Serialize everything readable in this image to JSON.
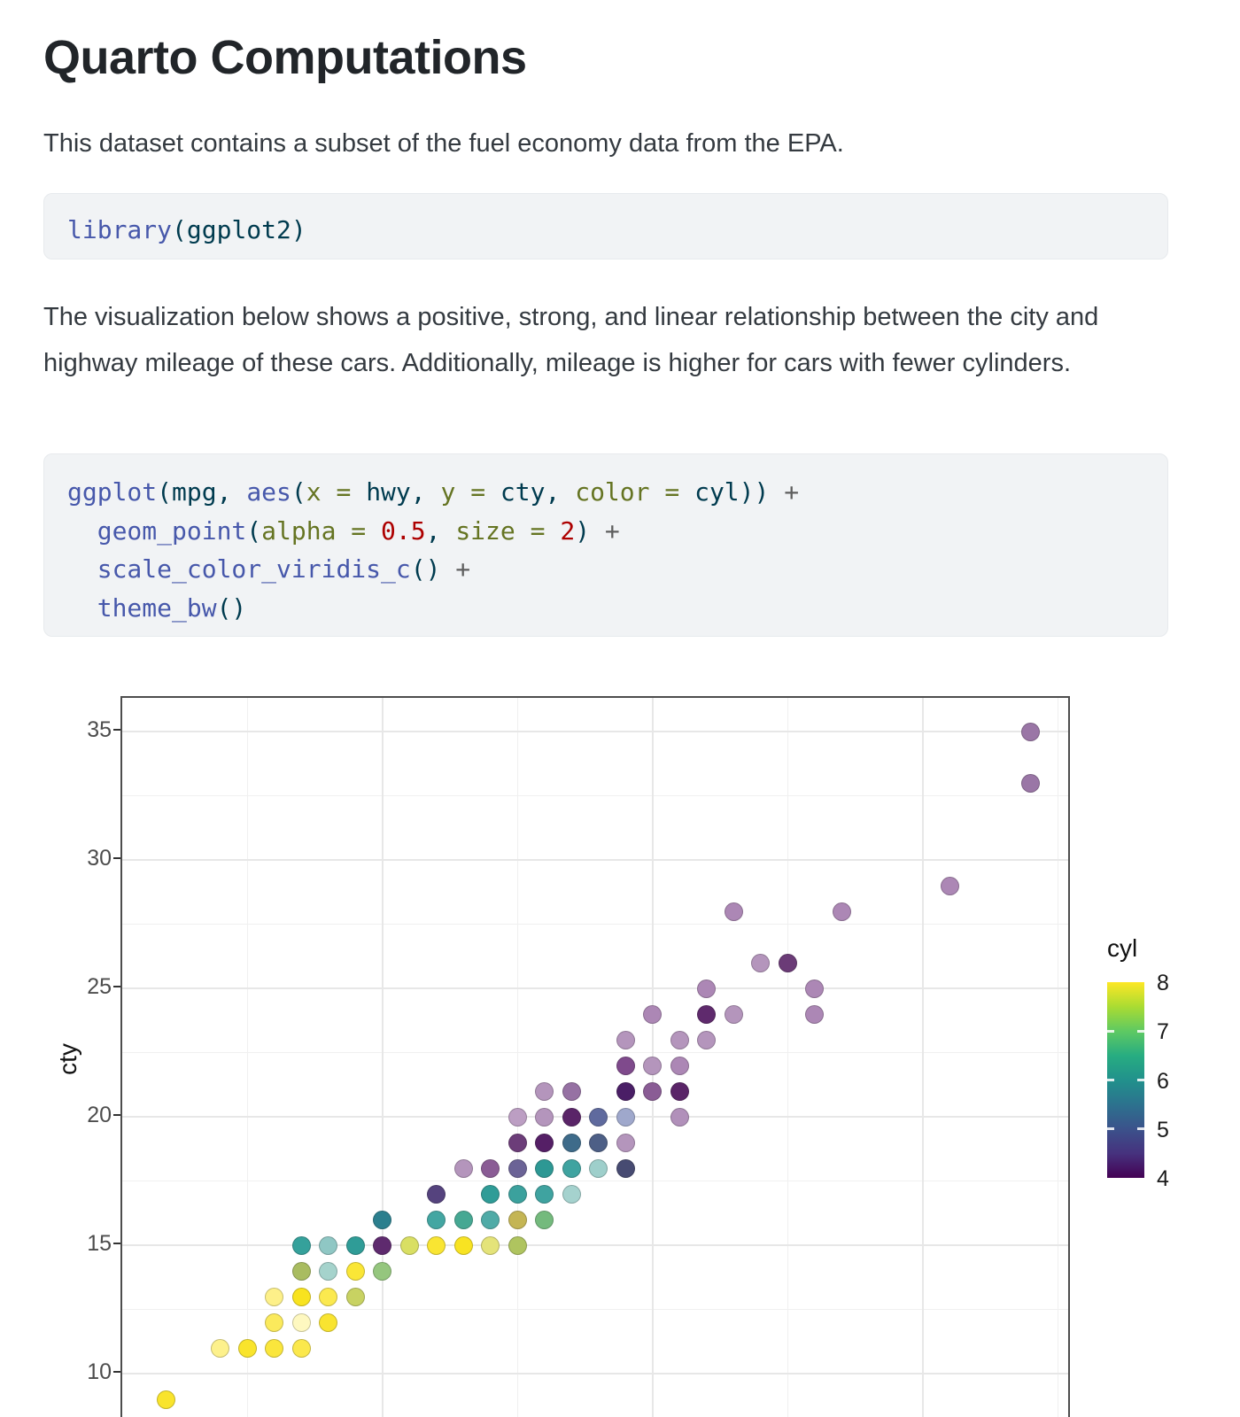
{
  "title": "Quarto Computations",
  "intro": "This dataset contains a subset of the fuel economy data from the EPA.",
  "description": "The visualization below shows a positive, strong, and linear relationship between the city and highway mileage of these cars. Additionally, mileage is higher for cars with fewer cylinders.",
  "code_colors": {
    "fn": "#4758AB",
    "pl": "#003B4F",
    "ot": "#657422",
    "dv": "#AD0000",
    "op": "#5E5E5E"
  },
  "code_blocks": {
    "library": {
      "lines": [
        [
          [
            "library",
            "fn"
          ],
          [
            "(",
            "pl"
          ],
          [
            "ggplot2",
            "pl"
          ],
          [
            ")",
            "pl"
          ]
        ]
      ]
    },
    "ggplot": {
      "lines": [
        [
          [
            "ggplot",
            "fn"
          ],
          [
            "(",
            "pl"
          ],
          [
            "mpg",
            "pl"
          ],
          [
            ", ",
            "pl"
          ],
          [
            "aes",
            "fn"
          ],
          [
            "(",
            "pl"
          ],
          [
            "x",
            "ot"
          ],
          [
            " = ",
            "ot"
          ],
          [
            "hwy",
            "pl"
          ],
          [
            ", ",
            "pl"
          ],
          [
            "y",
            "ot"
          ],
          [
            " = ",
            "ot"
          ],
          [
            "cty",
            "pl"
          ],
          [
            ", ",
            "pl"
          ],
          [
            "color",
            "ot"
          ],
          [
            " = ",
            "ot"
          ],
          [
            "cyl",
            "pl"
          ],
          [
            "))",
            "pl"
          ],
          [
            " +",
            "op"
          ]
        ],
        [
          [
            "  ",
            "pl"
          ],
          [
            "geom_point",
            "fn"
          ],
          [
            "(",
            "pl"
          ],
          [
            "alpha",
            "ot"
          ],
          [
            " = ",
            "ot"
          ],
          [
            "0.5",
            "dv"
          ],
          [
            ", ",
            "pl"
          ],
          [
            "size",
            "ot"
          ],
          [
            " = ",
            "ot"
          ],
          [
            "2",
            "dv"
          ],
          [
            ")",
            "pl"
          ],
          [
            " +",
            "op"
          ]
        ],
        [
          [
            "  ",
            "pl"
          ],
          [
            "scale_color_viridis_c",
            "fn"
          ],
          [
            "()",
            "pl"
          ],
          [
            " +",
            "op"
          ]
        ],
        [
          [
            "  ",
            "pl"
          ],
          [
            "theme_bw",
            "fn"
          ],
          [
            "()",
            "pl"
          ]
        ]
      ]
    }
  },
  "chart_data": {
    "type": "scatter",
    "ylabel": "cty",
    "x_variable": "hwy",
    "point_alpha": 0.5,
    "grid": true,
    "y_axis": {
      "major_ticks": [
        35,
        30,
        25,
        20,
        15,
        10
      ],
      "minor_gridlines": [
        32.5,
        27.5,
        22.5,
        17.5,
        12.5
      ],
      "range": [
        7.7,
        36.3
      ]
    },
    "x_axis": {
      "major_gridlines": [
        20,
        30,
        40
      ],
      "minor_gridlines": [
        15,
        25,
        35,
        45
      ],
      "range": [
        10.4,
        45.6
      ]
    },
    "legend": {
      "title": "cyl",
      "position": "right",
      "tick_labels": [
        8,
        7,
        6,
        5,
        4
      ],
      "inner_ticks": [
        7,
        6,
        5
      ],
      "viridis_stops": {
        "4": "#440154",
        "5": "#3B528B",
        "6": "#21918C",
        "7": "#5EC962",
        "8": "#FDE725"
      }
    },
    "points": [
      {
        "hwy": 12,
        "cty": 9,
        "color": "#F9E42C"
      },
      {
        "hwy": 14,
        "cty": 11,
        "color": "#FDF18C"
      },
      {
        "hwy": 15,
        "cty": 11,
        "color": "#F9E42C"
      },
      {
        "hwy": 16,
        "cty": 11,
        "color": "#FAE63C"
      },
      {
        "hwy": 17,
        "cty": 11,
        "color": "#FBE84C"
      },
      {
        "hwy": 16,
        "cty": 12,
        "color": "#FBEA5C"
      },
      {
        "hwy": 17,
        "cty": 12,
        "color": "#FEF8C0"
      },
      {
        "hwy": 18,
        "cty": 12,
        "color": "#F9E430"
      },
      {
        "hwy": 16,
        "cty": 13,
        "color": "#FDF089"
      },
      {
        "hwy": 17,
        "cty": 13,
        "color": "#F8E31F"
      },
      {
        "hwy": 18,
        "cty": 13,
        "color": "#FBE94F"
      },
      {
        "hwy": 19,
        "cty": 13,
        "color": "#C8D262"
      },
      {
        "hwy": 17,
        "cty": 14,
        "color": "#A9BC60"
      },
      {
        "hwy": 18,
        "cty": 14,
        "color": "#A5D3CC"
      },
      {
        "hwy": 19,
        "cty": 14,
        "color": "#FAE636"
      },
      {
        "hwy": 20,
        "cty": 14,
        "color": "#95C67E"
      },
      {
        "hwy": 17,
        "cty": 15,
        "color": "#35A19B"
      },
      {
        "hwy": 18,
        "cty": 15,
        "color": "#8FC7C4"
      },
      {
        "hwy": 19,
        "cty": 15,
        "color": "#2F9C97"
      },
      {
        "hwy": 20,
        "cty": 15,
        "color": "#5E2A6E"
      },
      {
        "hwy": 21,
        "cty": 15,
        "color": "#D9DF63"
      },
      {
        "hwy": 22,
        "cty": 15,
        "color": "#F9E532"
      },
      {
        "hwy": 23,
        "cty": 15,
        "color": "#F8E322"
      },
      {
        "hwy": 24,
        "cty": 15,
        "color": "#E4E379"
      },
      {
        "hwy": 25,
        "cty": 15,
        "color": "#AFC45F"
      },
      {
        "hwy": 20,
        "cty": 16,
        "color": "#2B7F8E"
      },
      {
        "hwy": 22,
        "cty": 16,
        "color": "#43A6A2"
      },
      {
        "hwy": 23,
        "cty": 16,
        "color": "#46A893"
      },
      {
        "hwy": 24,
        "cty": 16,
        "color": "#4FABA7"
      },
      {
        "hwy": 25,
        "cty": 16,
        "color": "#C4B554"
      },
      {
        "hwy": 26,
        "cty": 16,
        "color": "#74BA7D"
      },
      {
        "hwy": 22,
        "cty": 17,
        "color": "#55437E"
      },
      {
        "hwy": 24,
        "cty": 17,
        "color": "#2F9C97"
      },
      {
        "hwy": 25,
        "cty": 17,
        "color": "#3BA19D"
      },
      {
        "hwy": 26,
        "cty": 17,
        "color": "#3FA3A0"
      },
      {
        "hwy": 27,
        "cty": 17,
        "color": "#A5D2CE"
      },
      {
        "hwy": 23,
        "cty": 18,
        "color": "#B495BC"
      },
      {
        "hwy": 24,
        "cty": 18,
        "color": "#8A5C95"
      },
      {
        "hwy": 25,
        "cty": 18,
        "color": "#6B6396"
      },
      {
        "hwy": 26,
        "cty": 18,
        "color": "#2D9894"
      },
      {
        "hwy": 27,
        "cty": 18,
        "color": "#3FA3A0"
      },
      {
        "hwy": 28,
        "cty": 18,
        "color": "#9ECFCB"
      },
      {
        "hwy": 29,
        "cty": 18,
        "color": "#474B72"
      },
      {
        "hwy": 25,
        "cty": 19,
        "color": "#6C3D79"
      },
      {
        "hwy": 26,
        "cty": 19,
        "color": "#551F66"
      },
      {
        "hwy": 27,
        "cty": 19,
        "color": "#3E6B8A"
      },
      {
        "hwy": 28,
        "cty": 19,
        "color": "#4D5F86"
      },
      {
        "hwy": 29,
        "cty": 19,
        "color": "#B495BC"
      },
      {
        "hwy": 25,
        "cty": 20,
        "color": "#BC9EC3"
      },
      {
        "hwy": 26,
        "cty": 20,
        "color": "#B495BC"
      },
      {
        "hwy": 27,
        "cty": 20,
        "color": "#5A2468"
      },
      {
        "hwy": 28,
        "cty": 20,
        "color": "#5F6A9E"
      },
      {
        "hwy": 29,
        "cty": 20,
        "color": "#9FA8CC"
      },
      {
        "hwy": 31,
        "cty": 20,
        "color": "#B190BA"
      },
      {
        "hwy": 26,
        "cty": 21,
        "color": "#B495BC"
      },
      {
        "hwy": 27,
        "cty": 21,
        "color": "#9671A3"
      },
      {
        "hwy": 29,
        "cty": 21,
        "color": "#4A1E66"
      },
      {
        "hwy": 30,
        "cty": 21,
        "color": "#8A5C95"
      },
      {
        "hwy": 31,
        "cty": 21,
        "color": "#5A2468"
      },
      {
        "hwy": 29,
        "cty": 22,
        "color": "#7F4A8C"
      },
      {
        "hwy": 30,
        "cty": 22,
        "color": "#B495BC"
      },
      {
        "hwy": 31,
        "cty": 22,
        "color": "#AC87B5"
      },
      {
        "hwy": 29,
        "cty": 23,
        "color": "#B495BC"
      },
      {
        "hwy": 31,
        "cty": 23,
        "color": "#B495BC"
      },
      {
        "hwy": 32,
        "cty": 23,
        "color": "#B495BC"
      },
      {
        "hwy": 30,
        "cty": 24,
        "color": "#AC87B5"
      },
      {
        "hwy": 32,
        "cty": 24,
        "color": "#5F2A6D"
      },
      {
        "hwy": 33,
        "cty": 24,
        "color": "#B495BC"
      },
      {
        "hwy": 36,
        "cty": 24,
        "color": "#AC87B5"
      },
      {
        "hwy": 32,
        "cty": 25,
        "color": "#AC87B5"
      },
      {
        "hwy": 36,
        "cty": 25,
        "color": "#AC87B5"
      },
      {
        "hwy": 34,
        "cty": 26,
        "color": "#B495BC"
      },
      {
        "hwy": 35,
        "cty": 26,
        "color": "#6B3B77"
      },
      {
        "hwy": 33,
        "cty": 28,
        "color": "#AC87B5"
      },
      {
        "hwy": 37,
        "cty": 28,
        "color": "#AC87B5"
      },
      {
        "hwy": 41,
        "cty": 29,
        "color": "#AC87B5"
      },
      {
        "hwy": 44,
        "cty": 33,
        "color": "#9A76A6"
      },
      {
        "hwy": 44,
        "cty": 35,
        "color": "#9A76A6"
      }
    ]
  }
}
